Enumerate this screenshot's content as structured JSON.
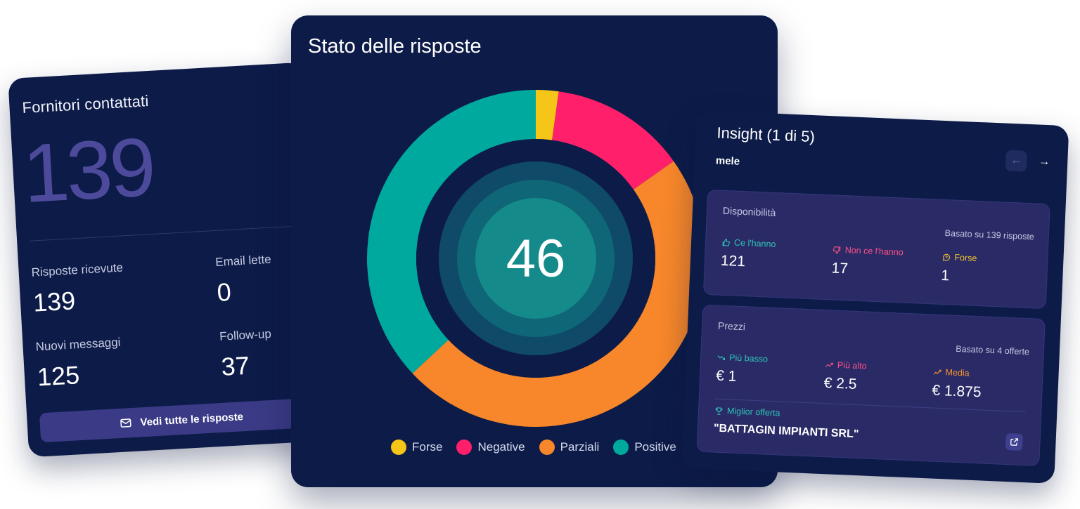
{
  "left_card": {
    "title": "Fornitori contattati",
    "total": "139",
    "stats": [
      {
        "label": "Risposte ricevute",
        "value": "139"
      },
      {
        "label": "Email lette",
        "value": "0"
      },
      {
        "label": "Nuovi messaggi",
        "value": "125"
      },
      {
        "label": "Follow-up",
        "value": "37"
      }
    ],
    "button_label": "Vedi tutte le risposte",
    "button_icon": "mail-icon"
  },
  "center_card": {
    "title": "Stato delle risposte",
    "center_value": "46"
  },
  "chart_data": {
    "type": "pie",
    "title": "Stato delle risposte",
    "center_label": "46",
    "categories": [
      "Forse",
      "Negative",
      "Parziali",
      "Positive"
    ],
    "values": [
      1,
      6,
      22,
      17
    ],
    "colors": [
      "#f5c518",
      "#ff1f6b",
      "#f7872a",
      "#00a99d"
    ],
    "legend_position": "bottom",
    "start_angle_deg": 0
  },
  "right_card": {
    "title": "Insight (1 di 5)",
    "subtitle": "mele",
    "nav_prev": "←",
    "nav_next": "→",
    "availability": {
      "title": "Disponibilità",
      "based_on": "Basato su 139 risposte",
      "items": [
        {
          "label": "Ce l'hanno",
          "value": "121",
          "icon": "thumbs-up-icon",
          "color": "#2ec4b6"
        },
        {
          "label": "Non ce l'hanno",
          "value": "17",
          "icon": "thumbs-down-icon",
          "color": "#ff4f86"
        },
        {
          "label": "Forse",
          "value": "1",
          "icon": "question-icon",
          "color": "#f4c430"
        }
      ]
    },
    "prices": {
      "title": "Prezzi",
      "based_on": "Basato su 4 offerte",
      "items": [
        {
          "label": "Più basso",
          "value": "€ 1",
          "icon": "trend-down-icon",
          "color": "#2ec4b6"
        },
        {
          "label": "Più alto",
          "value": "€ 2.5",
          "icon": "trend-up-icon",
          "color": "#ff4f86"
        },
        {
          "label": "Media",
          "value": "€ 1.875",
          "icon": "average-icon",
          "color": "#f7932e"
        }
      ],
      "best_offer_label": "Miglior offerta",
      "best_offer_value": "\"BATTAGIN IMPIANTI SRL\"",
      "best_offer_icon": "trophy-icon",
      "link_icon": "external-link-icon"
    }
  }
}
